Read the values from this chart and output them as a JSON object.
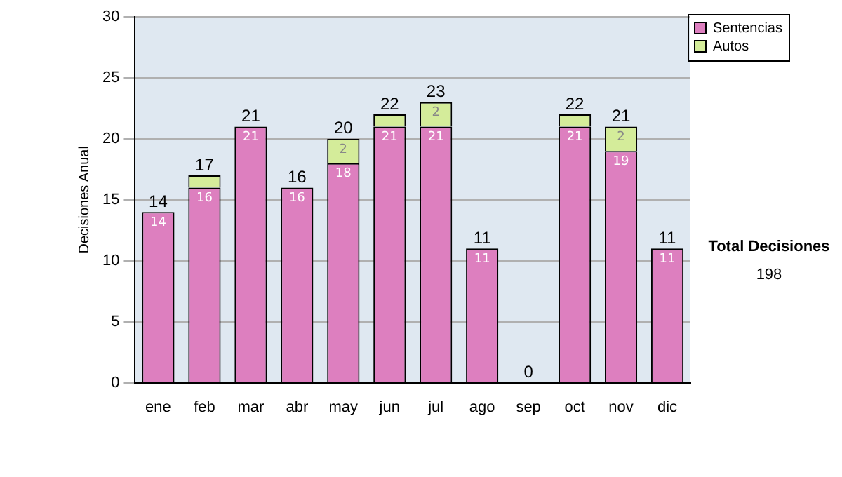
{
  "chart_data": {
    "type": "bar",
    "stacked": true,
    "ylabel": "Decisiones Anual",
    "categories": [
      "ene",
      "feb",
      "mar",
      "abr",
      "may",
      "jun",
      "jul",
      "ago",
      "sep",
      "oct",
      "nov",
      "dic"
    ],
    "series": [
      {
        "name": "Sentencias",
        "color": "#dd7fbf",
        "values": [
          14,
          16,
          21,
          16,
          18,
          21,
          21,
          11,
          0,
          21,
          19,
          11
        ],
        "value_labels": [
          "14",
          "16",
          "21",
          "16",
          "18",
          "21",
          "21",
          "11",
          null,
          "21",
          "19",
          "11"
        ]
      },
      {
        "name": "Autos",
        "color": "#d4ec9a",
        "values": [
          0,
          1,
          0,
          0,
          2,
          1,
          2,
          0,
          0,
          1,
          2,
          0
        ],
        "value_labels": [
          null,
          null,
          null,
          null,
          "2",
          null,
          "2",
          null,
          null,
          null,
          "2",
          null
        ]
      }
    ],
    "totals": [
      "14",
      "17",
      "21",
      "16",
      "20",
      "22",
      "23",
      "11",
      "0",
      "22",
      "21",
      "11"
    ],
    "ylim": [
      0,
      30
    ],
    "yticks": [
      0,
      5,
      10,
      15,
      20,
      25,
      30
    ],
    "grid": "y",
    "legend": "right",
    "annotations": [
      "Total Decisiones",
      "198"
    ]
  }
}
